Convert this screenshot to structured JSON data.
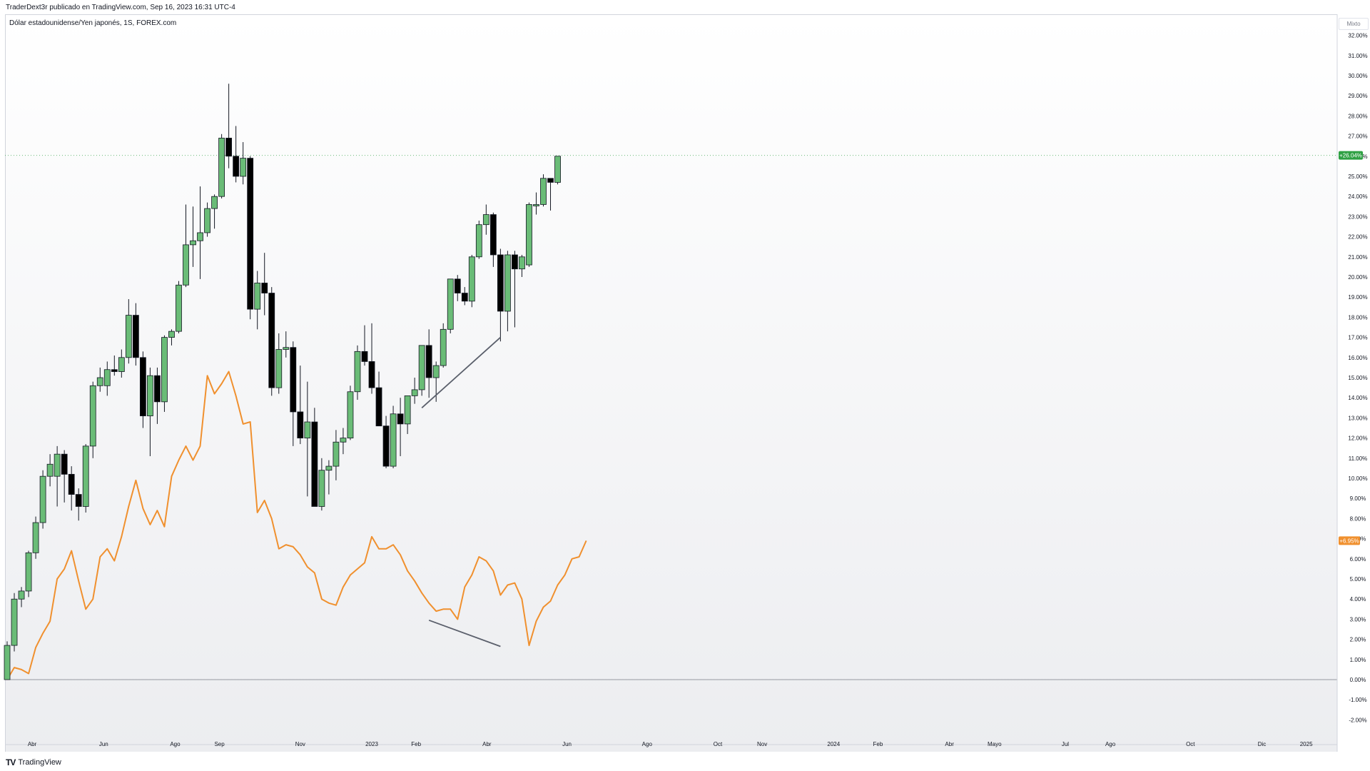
{
  "header": {
    "publisher_line": "TraderDext3r publicado en TradingView.com, Sep 16, 2023 16:31 UTC-4"
  },
  "symbol": {
    "label": "Dólar estadounidense/Yen japonés, 1S, FOREX.com"
  },
  "scale_mode": "Mixto",
  "footer": {
    "brand": "TradingView"
  },
  "chart_data": {
    "type": "candlestick",
    "ylabel_format": "percent",
    "y_ticks": [
      "32.00%",
      "31.00%",
      "30.00%",
      "29.00%",
      "28.00%",
      "27.00%",
      "26.00%",
      "25.00%",
      "24.00%",
      "23.00%",
      "22.00%",
      "21.00%",
      "20.00%",
      "19.00%",
      "18.00%",
      "17.00%",
      "16.00%",
      "15.00%",
      "14.00%",
      "13.00%",
      "12.00%",
      "11.00%",
      "10.00%",
      "9.00%",
      "8.00%",
      "7.00%",
      "6.00%",
      "5.00%",
      "4.00%",
      "3.00%",
      "2.00%",
      "1.00%",
      "0.00%",
      "-1.00%",
      "-2.00%"
    ],
    "ylim": [
      -3.2,
      32.6
    ],
    "x_labels": [
      {
        "t": 3.5,
        "label": "Abr"
      },
      {
        "t": 13.5,
        "label": "Jun"
      },
      {
        "t": 23.5,
        "label": "Ago"
      },
      {
        "t": 29.7,
        "label": "Sep"
      },
      {
        "t": 41,
        "label": "Nov"
      },
      {
        "t": 51,
        "label": "2023"
      },
      {
        "t": 57.2,
        "label": "Feb"
      },
      {
        "t": 67.1,
        "label": "Abr"
      },
      {
        "t": 78.3,
        "label": "Jun"
      },
      {
        "t": 89.5,
        "label": "Ago"
      },
      {
        "t": 99.4,
        "label": "Oct"
      },
      {
        "t": 105.6,
        "label": "Nov"
      },
      {
        "t": 115.6,
        "label": "2024"
      },
      {
        "t": 121.8,
        "label": "Feb"
      },
      {
        "t": 131.8,
        "label": "Abr"
      },
      {
        "t": 138.1,
        "label": "Mayo"
      },
      {
        "t": 148,
        "label": "Jul"
      },
      {
        "t": 154.3,
        "label": "Ago"
      },
      {
        "t": 165.5,
        "label": "Oct"
      },
      {
        "t": 175.5,
        "label": "Dic"
      },
      {
        "t": 181.7,
        "label": "2025"
      }
    ],
    "candles": [
      {
        "o": 0.0,
        "h": 1.9,
        "l": 0.0,
        "c": 1.7
      },
      {
        "o": 1.7,
        "h": 4.3,
        "l": 1.4,
        "c": 4.0
      },
      {
        "o": 4.0,
        "h": 4.6,
        "l": 3.6,
        "c": 4.4
      },
      {
        "o": 4.4,
        "h": 6.4,
        "l": 4.1,
        "c": 6.3
      },
      {
        "o": 6.3,
        "h": 8.1,
        "l": 6.0,
        "c": 7.8
      },
      {
        "o": 7.8,
        "h": 10.4,
        "l": 7.5,
        "c": 10.1
      },
      {
        "o": 10.1,
        "h": 11.2,
        "l": 9.6,
        "c": 10.7
      },
      {
        "o": 10.1,
        "h": 11.6,
        "l": 8.6,
        "c": 11.2
      },
      {
        "o": 11.2,
        "h": 11.4,
        "l": 8.8,
        "c": 10.2
      },
      {
        "o": 10.2,
        "h": 10.6,
        "l": 8.4,
        "c": 9.2
      },
      {
        "o": 9.2,
        "h": 9.5,
        "l": 7.9,
        "c": 8.6
      },
      {
        "o": 8.6,
        "h": 11.7,
        "l": 8.3,
        "c": 11.6
      },
      {
        "o": 11.6,
        "h": 14.8,
        "l": 11.0,
        "c": 14.6
      },
      {
        "o": 14.6,
        "h": 15.5,
        "l": 14.3,
        "c": 15.0
      },
      {
        "o": 14.6,
        "h": 15.8,
        "l": 14.1,
        "c": 15.4
      },
      {
        "o": 15.4,
        "h": 16.1,
        "l": 15.1,
        "c": 15.3
      },
      {
        "o": 15.3,
        "h": 16.4,
        "l": 15.0,
        "c": 16.0
      },
      {
        "o": 16.0,
        "h": 18.9,
        "l": 15.7,
        "c": 18.1
      },
      {
        "o": 18.1,
        "h": 18.7,
        "l": 15.6,
        "c": 16.0
      },
      {
        "o": 16.0,
        "h": 16.3,
        "l": 12.5,
        "c": 13.1
      },
      {
        "o": 13.1,
        "h": 15.5,
        "l": 11.1,
        "c": 15.1
      },
      {
        "o": 15.1,
        "h": 15.5,
        "l": 12.7,
        "c": 13.8
      },
      {
        "o": 13.8,
        "h": 17.1,
        "l": 13.3,
        "c": 17.0
      },
      {
        "o": 17.0,
        "h": 17.4,
        "l": 16.6,
        "c": 17.3
      },
      {
        "o": 17.3,
        "h": 19.8,
        "l": 17.2,
        "c": 19.6
      },
      {
        "o": 19.6,
        "h": 23.6,
        "l": 19.5,
        "c": 21.6
      },
      {
        "o": 21.6,
        "h": 23.5,
        "l": 20.5,
        "c": 21.8
      },
      {
        "o": 21.8,
        "h": 24.5,
        "l": 19.9,
        "c": 22.2
      },
      {
        "o": 22.2,
        "h": 23.7,
        "l": 22.0,
        "c": 23.4
      },
      {
        "o": 23.4,
        "h": 24.1,
        "l": 22.4,
        "c": 24.0
      },
      {
        "o": 24.0,
        "h": 27.1,
        "l": 23.9,
        "c": 26.9
      },
      {
        "o": 26.9,
        "h": 29.6,
        "l": 25.4,
        "c": 26.0
      },
      {
        "o": 26.0,
        "h": 27.5,
        "l": 24.7,
        "c": 25.0
      },
      {
        "o": 25.0,
        "h": 26.7,
        "l": 24.6,
        "c": 25.9
      },
      {
        "o": 25.9,
        "h": 26.0,
        "l": 17.9,
        "c": 18.4
      },
      {
        "o": 18.4,
        "h": 20.3,
        "l": 17.4,
        "c": 19.7
      },
      {
        "o": 19.7,
        "h": 21.2,
        "l": 18.1,
        "c": 19.2
      },
      {
        "o": 19.2,
        "h": 19.5,
        "l": 14.1,
        "c": 14.5
      },
      {
        "o": 14.5,
        "h": 17.2,
        "l": 14.2,
        "c": 16.4
      },
      {
        "o": 16.4,
        "h": 17.3,
        "l": 16.0,
        "c": 16.5
      },
      {
        "o": 16.5,
        "h": 16.8,
        "l": 11.6,
        "c": 13.3
      },
      {
        "o": 13.3,
        "h": 15.6,
        "l": 11.7,
        "c": 12.0
      },
      {
        "o": 12.0,
        "h": 14.8,
        "l": 9.1,
        "c": 12.8
      },
      {
        "o": 12.8,
        "h": 13.5,
        "l": 8.6,
        "c": 8.6
      },
      {
        "o": 8.6,
        "h": 11.0,
        "l": 8.4,
        "c": 10.4
      },
      {
        "o": 10.4,
        "h": 10.9,
        "l": 9.2,
        "c": 10.6
      },
      {
        "o": 10.6,
        "h": 12.4,
        "l": 9.9,
        "c": 11.8
      },
      {
        "o": 11.8,
        "h": 12.5,
        "l": 11.2,
        "c": 12.0
      },
      {
        "o": 12.0,
        "h": 14.6,
        "l": 11.9,
        "c": 14.3
      },
      {
        "o": 14.3,
        "h": 16.6,
        "l": 13.9,
        "c": 16.3
      },
      {
        "o": 16.3,
        "h": 17.6,
        "l": 15.6,
        "c": 15.8
      },
      {
        "o": 15.8,
        "h": 17.7,
        "l": 14.2,
        "c": 14.5
      },
      {
        "o": 14.5,
        "h": 15.3,
        "l": 12.8,
        "c": 12.6
      },
      {
        "o": 12.6,
        "h": 13.1,
        "l": 10.5,
        "c": 10.6
      },
      {
        "o": 10.6,
        "h": 13.6,
        "l": 10.5,
        "c": 13.2
      },
      {
        "o": 13.2,
        "h": 14.0,
        "l": 11.1,
        "c": 12.7
      },
      {
        "o": 12.7,
        "h": 14.1,
        "l": 12.2,
        "c": 14.1
      },
      {
        "o": 14.1,
        "h": 15.0,
        "l": 13.7,
        "c": 14.4
      },
      {
        "o": 14.4,
        "h": 16.6,
        "l": 14.1,
        "c": 16.6
      },
      {
        "o": 16.6,
        "h": 17.4,
        "l": 14.0,
        "c": 15.0
      },
      {
        "o": 15.0,
        "h": 15.8,
        "l": 13.8,
        "c": 15.6
      },
      {
        "o": 15.6,
        "h": 17.7,
        "l": 15.5,
        "c": 17.4
      },
      {
        "o": 17.4,
        "h": 19.9,
        "l": 17.2,
        "c": 19.9
      },
      {
        "o": 19.9,
        "h": 20.1,
        "l": 18.8,
        "c": 19.2
      },
      {
        "o": 19.2,
        "h": 19.5,
        "l": 18.6,
        "c": 18.8
      },
      {
        "o": 18.8,
        "h": 21.1,
        "l": 18.5,
        "c": 21.0
      },
      {
        "o": 21.0,
        "h": 22.8,
        "l": 20.9,
        "c": 22.6
      },
      {
        "o": 22.6,
        "h": 23.6,
        "l": 22.1,
        "c": 23.1
      },
      {
        "o": 23.1,
        "h": 23.2,
        "l": 20.5,
        "c": 21.1
      },
      {
        "o": 21.1,
        "h": 21.4,
        "l": 16.8,
        "c": 18.3
      },
      {
        "o": 18.3,
        "h": 21.3,
        "l": 17.3,
        "c": 21.1
      },
      {
        "o": 21.1,
        "h": 21.3,
        "l": 17.5,
        "c": 20.4
      },
      {
        "o": 20.4,
        "h": 21.1,
        "l": 20.0,
        "c": 21.0
      },
      {
        "o": 20.6,
        "h": 23.7,
        "l": 20.5,
        "c": 23.6
      },
      {
        "o": 23.6,
        "h": 24.2,
        "l": 23.1,
        "c": 23.6
      },
      {
        "o": 23.6,
        "h": 25.1,
        "l": 23.5,
        "c": 24.9
      },
      {
        "o": 24.9,
        "h": 24.9,
        "l": 23.3,
        "c": 24.7
      },
      {
        "o": 24.7,
        "h": 26.0,
        "l": 24.6,
        "c": 26.0
      }
    ],
    "indicator_line": {
      "color": "#f0902e",
      "values": [
        0.0,
        0.6,
        0.5,
        0.3,
        1.6,
        2.3,
        2.9,
        5.0,
        5.5,
        6.4,
        4.9,
        3.5,
        4.0,
        6.1,
        6.5,
        5.9,
        7.1,
        8.6,
        9.9,
        8.5,
        7.7,
        8.4,
        7.6,
        10.1,
        10.9,
        11.6,
        10.9,
        11.6,
        15.1,
        14.2,
        14.7,
        15.3,
        14.1,
        12.7,
        12.8,
        8.3,
        8.9,
        8.0,
        6.5,
        6.7,
        6.6,
        6.2,
        5.6,
        5.3,
        4.0,
        3.8,
        3.7,
        4.6,
        5.2,
        5.5,
        5.8,
        7.1,
        6.5,
        6.5,
        6.7,
        6.2,
        5.4,
        4.9,
        4.3,
        3.8,
        3.4,
        3.5,
        3.5,
        3.0,
        4.6,
        5.2,
        6.1,
        5.9,
        5.4,
        4.2,
        4.7,
        4.8,
        4.0,
        1.7,
        2.9,
        3.6,
        3.9,
        4.7,
        5.2,
        6.0,
        6.1,
        6.9
      ],
      "label": "+6.95%"
    },
    "trendlines": [
      {
        "pane": "price",
        "from": {
          "t": 58,
          "v": 13.5
        },
        "to": {
          "t": 69,
          "v": 17.0
        }
      },
      {
        "pane": "indicator",
        "from": {
          "t": 59,
          "v": 2.95
        },
        "to": {
          "t": 69,
          "v": 1.65
        }
      }
    ],
    "last_price_label": "+26.04%",
    "last_price_value": 26.04,
    "colors": {
      "up": "#6abc77",
      "down": "#000000",
      "wick": "#131722",
      "last_price": "#2ea043",
      "indicator": "#f0902e",
      "trendline": "#5a5f6b"
    }
  }
}
